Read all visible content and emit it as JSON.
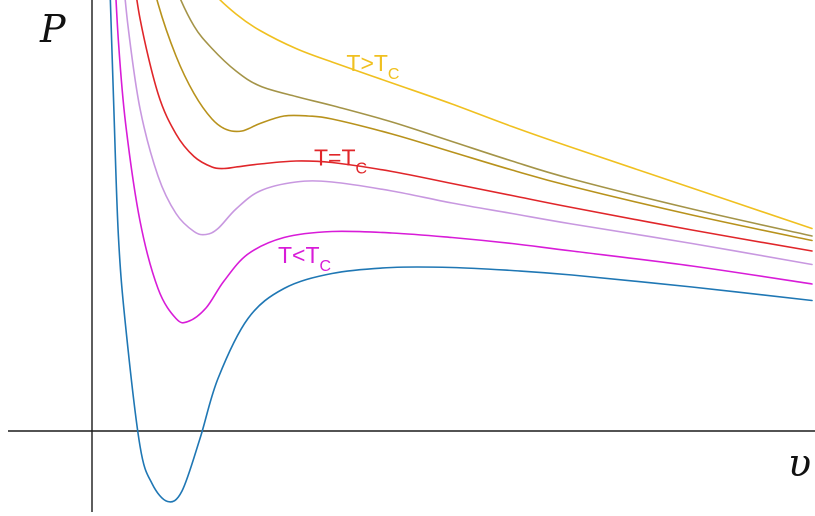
{
  "chart_data": {
    "type": "line",
    "title": "",
    "xlabel": "υ",
    "ylabel": "P",
    "grid": false,
    "legend": "none",
    "xlim": [
      0.0,
      6.0
    ],
    "ylim": [
      -0.5,
      3.2
    ],
    "series": [
      {
        "color": "#1f77b4",
        "x": [
          0.14,
          0.18,
          0.22,
          0.28,
          0.4,
          0.5,
          0.63,
          0.75,
          0.9,
          1.05,
          1.3,
          1.6,
          2.0,
          2.5,
          3.0,
          3.5,
          4.0,
          5.0,
          6.0
        ],
        "y": [
          3.2,
          2.2,
          1.3,
          0.7,
          -0.1,
          -0.35,
          -0.47,
          -0.4,
          -0.05,
          0.35,
          0.75,
          0.95,
          1.05,
          1.09,
          1.09,
          1.07,
          1.04,
          0.96,
          0.87
        ]
      },
      {
        "color": "#d81cd8",
        "x": [
          0.18,
          0.22,
          0.28,
          0.4,
          0.55,
          0.7,
          0.8,
          0.95,
          1.1,
          1.3,
          1.6,
          2.0,
          2.5,
          3.0,
          3.5,
          4.0,
          5.0,
          6.0
        ],
        "y": [
          3.2,
          2.6,
          2.05,
          1.4,
          0.95,
          0.75,
          0.73,
          0.82,
          1.0,
          1.18,
          1.29,
          1.33,
          1.32,
          1.29,
          1.25,
          1.2,
          1.1,
          0.98
        ]
      },
      {
        "color": "#c898e0",
        "x": [
          0.24,
          0.3,
          0.4,
          0.55,
          0.7,
          0.85,
          0.95,
          1.05,
          1.2,
          1.4,
          1.7,
          2.0,
          2.5,
          3.0,
          3.5,
          4.0,
          5.0,
          6.0
        ],
        "y": [
          3.2,
          2.7,
          2.15,
          1.7,
          1.45,
          1.33,
          1.31,
          1.35,
          1.48,
          1.6,
          1.66,
          1.66,
          1.6,
          1.52,
          1.45,
          1.38,
          1.25,
          1.11
        ]
      },
      {
        "color": "#e0262a",
        "x": [
          0.32,
          0.4,
          0.55,
          0.7,
          0.85,
          1.0,
          1.1,
          1.2,
          1.4,
          1.7,
          2.0,
          2.5,
          3.0,
          3.5,
          4.0,
          5.0,
          6.0
        ],
        "y": [
          3.2,
          2.75,
          2.25,
          1.98,
          1.83,
          1.76,
          1.75,
          1.76,
          1.78,
          1.8,
          1.79,
          1.73,
          1.65,
          1.57,
          1.49,
          1.34,
          1.2
        ]
      },
      {
        "color": "#b8921c",
        "x": [
          0.45,
          0.55,
          0.7,
          0.85,
          1.0,
          1.12,
          1.25,
          1.4,
          1.6,
          1.8,
          2.0,
          2.5,
          3.0,
          3.5,
          4.0,
          5.0,
          6.0
        ],
        "y": [
          3.2,
          2.85,
          2.5,
          2.25,
          2.08,
          2.01,
          2.0,
          2.05,
          2.1,
          2.1,
          2.08,
          1.98,
          1.86,
          1.74,
          1.63,
          1.44,
          1.27
        ]
      },
      {
        "color": "#a49448",
        "x": [
          0.6,
          0.7,
          0.85,
          1.0,
          1.2,
          1.4,
          1.7,
          2.0,
          2.5,
          3.0,
          3.5,
          4.0,
          5.0,
          6.0
        ],
        "y": [
          3.2,
          2.95,
          2.7,
          2.55,
          2.4,
          2.3,
          2.23,
          2.17,
          2.06,
          1.93,
          1.8,
          1.68,
          1.48,
          1.3
        ]
      },
      {
        "color": "#f0c020",
        "x": [
          0.8,
          0.9,
          1.0,
          1.2,
          1.4,
          1.7,
          2.0,
          2.5,
          3.0,
          3.5,
          4.0,
          5.0,
          6.0
        ],
        "y": [
          3.2,
          3.05,
          2.93,
          2.78,
          2.67,
          2.55,
          2.46,
          2.32,
          2.18,
          2.03,
          1.89,
          1.62,
          1.35
        ]
      }
    ],
    "annotations": [
      {
        "main": "T>T",
        "sub": "C",
        "color": "#f0c020",
        "x": 2.12,
        "y": 2.4
      },
      {
        "main": "T=T",
        "sub": "C",
        "color": "#e0262a",
        "x": 1.85,
        "y": 1.77
      },
      {
        "main": "T<T",
        "sub": "C",
        "color": "#d81cd8",
        "x": 1.55,
        "y": 1.12
      }
    ]
  }
}
